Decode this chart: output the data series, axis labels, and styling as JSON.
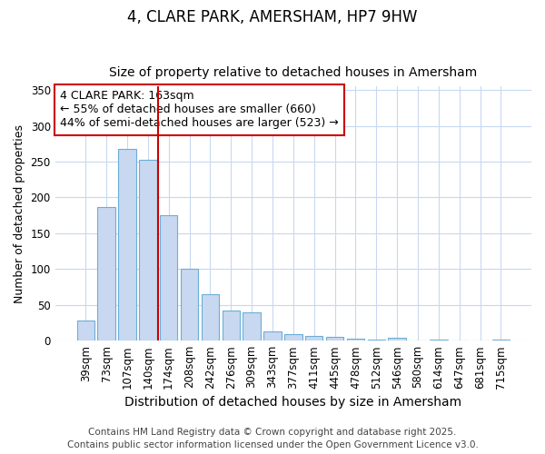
{
  "title1": "4, CLARE PARK, AMERSHAM, HP7 9HW",
  "title2": "Size of property relative to detached houses in Amersham",
  "xlabel": "Distribution of detached houses by size in Amersham",
  "ylabel": "Number of detached properties",
  "categories": [
    "39sqm",
    "73sqm",
    "107sqm",
    "140sqm",
    "174sqm",
    "208sqm",
    "242sqm",
    "276sqm",
    "309sqm",
    "343sqm",
    "377sqm",
    "411sqm",
    "445sqm",
    "478sqm",
    "512sqm",
    "546sqm",
    "580sqm",
    "614sqm",
    "647sqm",
    "681sqm",
    "715sqm"
  ],
  "values": [
    28,
    187,
    268,
    253,
    175,
    100,
    65,
    42,
    40,
    13,
    9,
    7,
    5,
    3,
    2,
    4,
    0,
    2,
    0,
    0,
    1
  ],
  "bar_color": "#c8d8f0",
  "bar_edge_color": "#6baed6",
  "red_line_x": 3.5,
  "ylim": [
    0,
    355
  ],
  "yticks": [
    0,
    50,
    100,
    150,
    200,
    250,
    300,
    350
  ],
  "annotation_text": "4 CLARE PARK: 163sqm\n← 55% of detached houses are smaller (660)\n44% of semi-detached houses are larger (523) →",
  "annotation_box_color": "#ffffff",
  "annotation_box_edge": "#cc0000",
  "footer1": "Contains HM Land Registry data © Crown copyright and database right 2025.",
  "footer2": "Contains public sector information licensed under the Open Government Licence v3.0.",
  "background_color": "#ffffff",
  "grid_color": "#c8d8f0",
  "title1_fontsize": 12,
  "title2_fontsize": 10,
  "xlabel_fontsize": 10,
  "ylabel_fontsize": 9,
  "tick_fontsize": 8.5,
  "annotation_fontsize": 9,
  "footer_fontsize": 7.5
}
